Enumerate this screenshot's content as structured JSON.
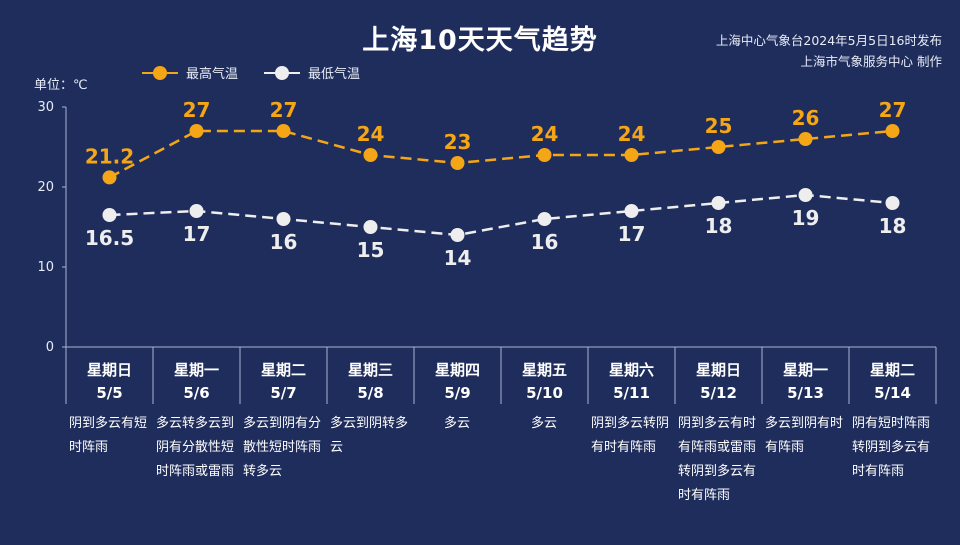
{
  "header": {
    "title": "上海10天天气趋势",
    "issuer_line1": "上海中心气象台2024年5月5日16时发布",
    "issuer_line2": "上海市气象服务中心 制作",
    "unit": "单位：℃"
  },
  "colors": {
    "high": "#f5a617",
    "low": "#eeeeee",
    "background": "#1f2d5c",
    "axis": "#aab4cf"
  },
  "chart_data": {
    "type": "line",
    "ylim": [
      0,
      30
    ],
    "yticks": [
      0,
      10,
      20,
      30
    ],
    "ylabel": "单位：℃",
    "categories": [
      {
        "weekday": "星期日",
        "date": "5/5",
        "weather": "阴到多云有短时阵雨"
      },
      {
        "weekday": "星期一",
        "date": "5/6",
        "weather": "多云转多云到阴有分散性短时阵雨或雷雨"
      },
      {
        "weekday": "星期二",
        "date": "5/7",
        "weather": "多云到阴有分散性短时阵雨转多云"
      },
      {
        "weekday": "星期三",
        "date": "5/8",
        "weather": "多云到阴转多云"
      },
      {
        "weekday": "星期四",
        "date": "5/9",
        "weather": "多云"
      },
      {
        "weekday": "星期五",
        "date": "5/10",
        "weather": "多云"
      },
      {
        "weekday": "星期六",
        "date": "5/11",
        "weather": "阴到多云转阴有时有阵雨"
      },
      {
        "weekday": "星期日",
        "date": "5/12",
        "weather": "阴到多云有时有阵雨或雷雨转阴到多云有时有阵雨"
      },
      {
        "weekday": "星期一",
        "date": "5/13",
        "weather": "多云到阴有时有阵雨"
      },
      {
        "weekday": "星期二",
        "date": "5/14",
        "weather": "阴有短时阵雨转阴到多云有时有阵雨"
      }
    ],
    "series": [
      {
        "name": "最高气温",
        "values": [
          21.2,
          27,
          27,
          24,
          23,
          24,
          24,
          25,
          26,
          27
        ],
        "labels": [
          "21.2",
          "27",
          "27",
          "24",
          "23",
          "24",
          "24",
          "25",
          "26",
          "27"
        ]
      },
      {
        "name": "最低气温",
        "values": [
          16.5,
          17,
          16,
          15,
          14,
          16,
          17,
          18,
          19,
          18
        ],
        "labels": [
          "16.5",
          "17",
          "16",
          "15",
          "14",
          "16",
          "17",
          "18",
          "19",
          "18"
        ]
      }
    ]
  }
}
